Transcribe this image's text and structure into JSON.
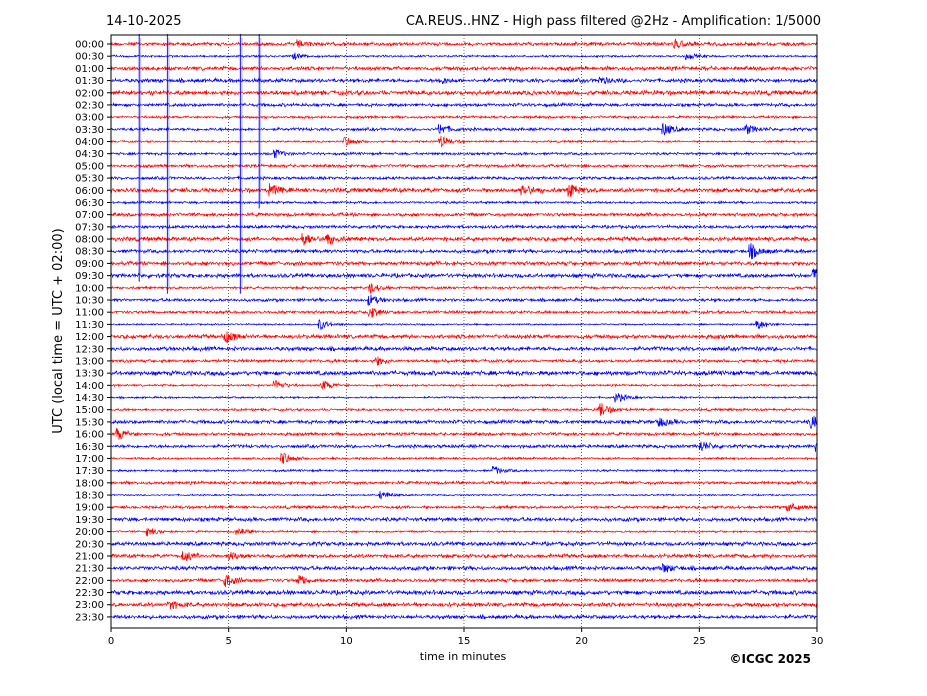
{
  "chart_data": {
    "type": "line",
    "date": "14-10-2025",
    "title": "CA.REUS..HNZ - High pass filtered @2Hz - Amplification: 1/5000",
    "xlabel": "time in minutes",
    "ylabel": "UTC (local time = UTC + 02:00)",
    "xlim": [
      0,
      30
    ],
    "xticks": [
      "0",
      "5",
      "10",
      "15",
      "20",
      "25",
      "30"
    ],
    "grid": "vertical dotted at 5-minute intervals",
    "colors": [
      "#ff0000",
      "#0000ff"
    ],
    "traces": [
      "00:00",
      "00:30",
      "01:00",
      "01:30",
      "02:00",
      "02:30",
      "03:00",
      "03:30",
      "04:00",
      "04:30",
      "05:00",
      "05:30",
      "06:00",
      "06:30",
      "07:00",
      "07:30",
      "08:00",
      "08:30",
      "09:00",
      "09:30",
      "10:00",
      "10:30",
      "11:00",
      "11:30",
      "12:00",
      "12:30",
      "13:00",
      "13:30",
      "14:00",
      "14:30",
      "15:00",
      "15:30",
      "16:00",
      "16:30",
      "17:00",
      "17:30",
      "18:00",
      "18:30",
      "19:00",
      "19:30",
      "20:00",
      "20:30",
      "21:00",
      "21:30",
      "22:00",
      "22:30",
      "23:00",
      "23:30"
    ],
    "spikes": [
      {
        "minute": 1.2,
        "from_trace": 0,
        "to_trace": 19
      },
      {
        "minute": 2.4,
        "from_trace": 0,
        "to_trace": 20
      },
      {
        "minute": 5.5,
        "from_trace": 0,
        "to_trace": 20
      },
      {
        "minute": 6.3,
        "from_trace": 0,
        "to_trace": 13
      }
    ],
    "events": [
      [
        0,
        8.0,
        3
      ],
      [
        0,
        24.0,
        4
      ],
      [
        1,
        7.8,
        3
      ],
      [
        1,
        24.5,
        3
      ],
      [
        3,
        14.0,
        3
      ],
      [
        3,
        20.8,
        3
      ],
      [
        7,
        14.0,
        5
      ],
      [
        7,
        23.5,
        6
      ],
      [
        7,
        27.0,
        5
      ],
      [
        8,
        14.0,
        6
      ],
      [
        8,
        10.0,
        4
      ],
      [
        9,
        7.0,
        4
      ],
      [
        12,
        17.5,
        6
      ],
      [
        12,
        19.5,
        6
      ],
      [
        12,
        6.8,
        5
      ],
      [
        16,
        8.2,
        6
      ],
      [
        16,
        9.2,
        5
      ],
      [
        17,
        27.2,
        7
      ],
      [
        19,
        29.9,
        6
      ],
      [
        20,
        11.0,
        5
      ],
      [
        21,
        11.0,
        5
      ],
      [
        22,
        11.0,
        6
      ],
      [
        23,
        27.5,
        5
      ],
      [
        23,
        8.9,
        5
      ],
      [
        24,
        4.9,
        5
      ],
      [
        26,
        11.3,
        4
      ],
      [
        28,
        7.0,
        5
      ],
      [
        28,
        9.0,
        5
      ],
      [
        29,
        21.5,
        5
      ],
      [
        30,
        20.8,
        7
      ],
      [
        31,
        29.8,
        6
      ],
      [
        31,
        23.3,
        5
      ],
      [
        32,
        0.3,
        6
      ],
      [
        33,
        25.1,
        5
      ],
      [
        33,
        30.0,
        6
      ],
      [
        34,
        7.3,
        6
      ],
      [
        35,
        16.3,
        4
      ],
      [
        37,
        11.5,
        4
      ],
      [
        38,
        28.8,
        4
      ],
      [
        40,
        1.6,
        4
      ],
      [
        40,
        5.4,
        4
      ],
      [
        42,
        3.1,
        5
      ],
      [
        42,
        5.1,
        4
      ],
      [
        43,
        23.5,
        4
      ],
      [
        44,
        4.9,
        6
      ],
      [
        44,
        8.0,
        5
      ],
      [
        46,
        2.5,
        4
      ]
    ]
  },
  "footer": {
    "copyright": "©ICGC 2025"
  }
}
